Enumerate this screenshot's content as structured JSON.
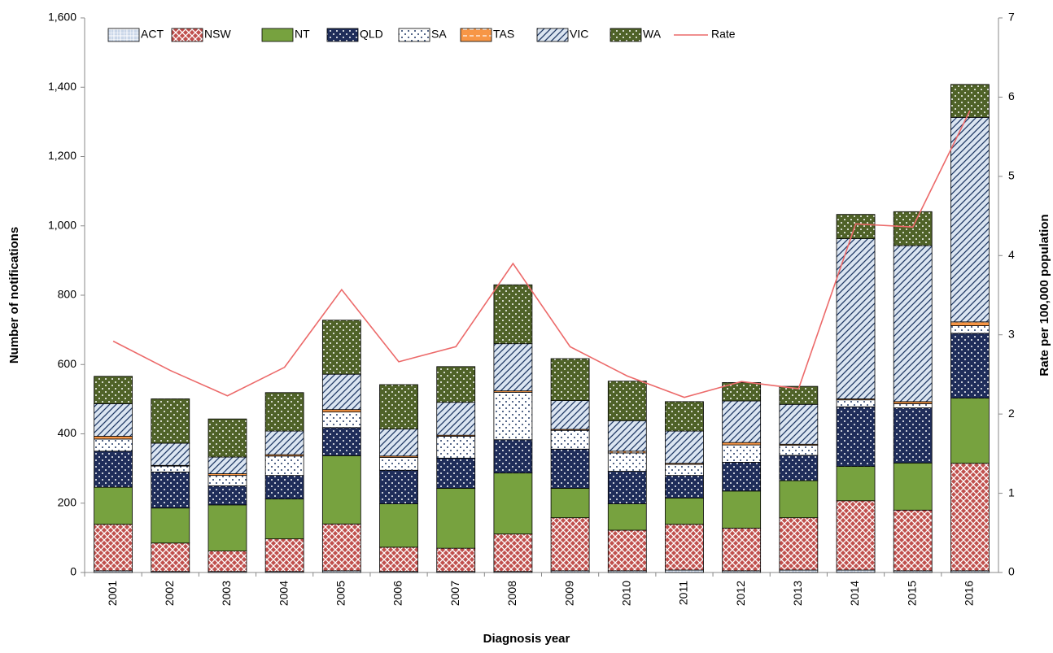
{
  "chart_data": {
    "type": "bar",
    "stacked": true,
    "x_label": "Diagnosis year",
    "y_label": "Number of notifications",
    "y2_label": "Rate per 100,000 population",
    "categories": [
      "2001",
      "2002",
      "2003",
      "2004",
      "2005",
      "2006",
      "2007",
      "2008",
      "2009",
      "2010",
      "2011",
      "2012",
      "2013",
      "2014",
      "2015",
      "2016"
    ],
    "series": [
      {
        "name": "ACT",
        "color": "#c9d6e8",
        "values": [
          5,
          3,
          3,
          3,
          5,
          3,
          3,
          3,
          5,
          5,
          7,
          5,
          7,
          7,
          5,
          5
        ]
      },
      {
        "name": "NSW",
        "color": "#c0504d",
        "values": [
          134,
          82,
          59,
          94,
          135,
          70,
          67,
          108,
          153,
          117,
          132,
          123,
          151,
          200,
          175,
          310
        ]
      },
      {
        "name": "NT",
        "color": "#77a23f",
        "values": [
          107,
          101,
          133,
          115,
          197,
          125,
          173,
          176,
          85,
          76,
          76,
          107,
          107,
          99,
          136,
          188
        ]
      },
      {
        "name": "QLD",
        "color": "#1f2d5a",
        "values": [
          104,
          104,
          55,
          68,
          81,
          97,
          87,
          96,
          113,
          94,
          65,
          83,
          73,
          172,
          159,
          187
        ]
      },
      {
        "name": "SA",
        "color": "#ffffff",
        "values": [
          35,
          17,
          30,
          56,
          45,
          37,
          63,
          137,
          54,
          53,
          32,
          50,
          29,
          20,
          12,
          22
        ]
      },
      {
        "name": "TAS",
        "color": "#f79646",
        "values": [
          8,
          2,
          5,
          4,
          7,
          4,
          3,
          4,
          3,
          5,
          3,
          7,
          3,
          3,
          6,
          11
        ]
      },
      {
        "name": "VIC",
        "color": "#dbe5f1",
        "values": [
          94,
          64,
          48,
          68,
          102,
          78,
          95,
          136,
          83,
          88,
          93,
          120,
          115,
          462,
          450,
          590
        ]
      },
      {
        "name": "WA",
        "color": "#4f6228",
        "values": [
          79,
          128,
          110,
          111,
          156,
          128,
          103,
          170,
          121,
          114,
          85,
          53,
          52,
          70,
          98,
          95
        ]
      },
      {
        "name": "Rate",
        "color": "#ec6a6a",
        "type": "line",
        "axis": "y2",
        "values": [
          2.92,
          2.55,
          2.23,
          2.59,
          3.57,
          2.66,
          2.85,
          3.9,
          2.85,
          2.48,
          2.21,
          2.41,
          2.32,
          4.4,
          4.36,
          5.83
        ]
      }
    ],
    "ylim": [
      0,
      1600
    ],
    "yticks": [
      0,
      200,
      400,
      600,
      800,
      {
        "value": 1000,
        "label": "1,000"
      },
      {
        "value": 1200,
        "label": "1,200"
      },
      {
        "value": 1400,
        "label": "1,400"
      },
      {
        "value": 1600,
        "label": "1,600"
      }
    ],
    "y2lim": [
      0,
      7
    ],
    "y2ticks": [
      0,
      1,
      2,
      3,
      4,
      5,
      6,
      7
    ],
    "legend": "top-left"
  }
}
